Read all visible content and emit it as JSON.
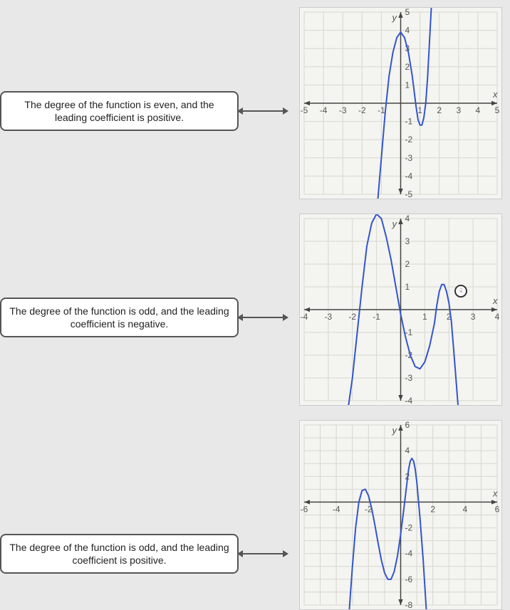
{
  "labels": {
    "row1": "The degree of the function is even, and the leading coefficient is positive.",
    "row2": "The degree of the function is odd, and the leading coefficient is negative.",
    "row3": "The degree of the function is odd, and the leading coefficient is positive."
  },
  "graphs": {
    "g1": {
      "type": "cartesian-plot",
      "xmin": -5,
      "xmax": 5,
      "ymin": -5,
      "ymax": 5,
      "xtick_step": 1,
      "ytick_step": 1,
      "x_axis_label": "x",
      "y_axis_label": "y",
      "background_color": "#f4f4f0",
      "grid_color": "#d8d8d0",
      "axis_color": "#444444",
      "curve_color": "#3355cc",
      "curve_width": 2,
      "label_fontsize": 12,
      "label_color": "#555555",
      "curve_points": [
        [
          -1.2,
          -5.5
        ],
        [
          -1.0,
          -3.0
        ],
        [
          -0.8,
          -0.5
        ],
        [
          -0.6,
          1.5
        ],
        [
          -0.4,
          2.8
        ],
        [
          -0.2,
          3.6
        ],
        [
          0.0,
          3.9
        ],
        [
          0.2,
          3.6
        ],
        [
          0.4,
          2.8
        ],
        [
          0.6,
          1.5
        ],
        [
          0.8,
          -0.2
        ],
        [
          0.9,
          -0.9
        ],
        [
          1.0,
          -1.2
        ],
        [
          1.1,
          -1.2
        ],
        [
          1.2,
          -0.8
        ],
        [
          1.3,
          0.0
        ],
        [
          1.4,
          1.5
        ],
        [
          1.5,
          3.5
        ],
        [
          1.6,
          5.5
        ]
      ]
    },
    "g2": {
      "type": "cartesian-plot",
      "xmin": -4,
      "xmax": 4,
      "ymin": -4,
      "ymax": 4,
      "xtick_step": 1,
      "ytick_step": 1,
      "x_axis_label": "x",
      "y_axis_label": "y",
      "background_color": "#f4f4f0",
      "grid_color": "#d8d8d0",
      "axis_color": "#444444",
      "curve_color": "#3355cc",
      "curve_width": 2,
      "label_fontsize": 12,
      "label_color": "#555555",
      "curve_points": [
        [
          -2.2,
          -4.5
        ],
        [
          -2.0,
          -3.0
        ],
        [
          -1.8,
          -1.0
        ],
        [
          -1.6,
          1.0
        ],
        [
          -1.4,
          2.8
        ],
        [
          -1.2,
          3.8
        ],
        [
          -1.0,
          4.2
        ],
        [
          -0.8,
          4.0
        ],
        [
          -0.6,
          3.2
        ],
        [
          -0.4,
          2.2
        ],
        [
          -0.2,
          1.0
        ],
        [
          0.0,
          -0.2
        ],
        [
          0.2,
          -1.2
        ],
        [
          0.4,
          -2.0
        ],
        [
          0.6,
          -2.5
        ],
        [
          0.8,
          -2.6
        ],
        [
          1.0,
          -2.3
        ],
        [
          1.2,
          -1.6
        ],
        [
          1.4,
          -0.6
        ],
        [
          1.5,
          0.2
        ],
        [
          1.6,
          0.8
        ],
        [
          1.7,
          1.1
        ],
        [
          1.8,
          1.1
        ],
        [
          1.9,
          0.8
        ],
        [
          2.0,
          0.3
        ],
        [
          2.1,
          -0.5
        ],
        [
          2.2,
          -1.8
        ],
        [
          2.4,
          -4.5
        ]
      ]
    },
    "g3": {
      "type": "cartesian-plot",
      "xmin": -6,
      "xmax": 6,
      "ymin": -8,
      "ymax": 6,
      "xtick_step": 2,
      "ytick_step": 2,
      "x_axis_label": "x",
      "y_axis_label": "y",
      "background_color": "#f4f4f0",
      "grid_color": "#d8d8d0",
      "axis_color": "#444444",
      "curve_color": "#3355cc",
      "curve_width": 2,
      "label_fontsize": 12,
      "label_color": "#555555",
      "curve_points": [
        [
          -3.2,
          -8.5
        ],
        [
          -3.0,
          -5.0
        ],
        [
          -2.8,
          -2.0
        ],
        [
          -2.6,
          0.0
        ],
        [
          -2.4,
          0.9
        ],
        [
          -2.2,
          1.0
        ],
        [
          -2.0,
          0.5
        ],
        [
          -1.8,
          -0.5
        ],
        [
          -1.6,
          -1.8
        ],
        [
          -1.4,
          -3.2
        ],
        [
          -1.2,
          -4.5
        ],
        [
          -1.0,
          -5.5
        ],
        [
          -0.8,
          -6.0
        ],
        [
          -0.6,
          -6.0
        ],
        [
          -0.4,
          -5.4
        ],
        [
          -0.2,
          -4.2
        ],
        [
          0.0,
          -2.5
        ],
        [
          0.2,
          -0.5
        ],
        [
          0.4,
          1.6
        ],
        [
          0.5,
          2.6
        ],
        [
          0.6,
          3.2
        ],
        [
          0.7,
          3.4
        ],
        [
          0.8,
          3.2
        ],
        [
          0.9,
          2.6
        ],
        [
          1.0,
          1.6
        ],
        [
          1.2,
          -1.2
        ],
        [
          1.4,
          -4.5
        ],
        [
          1.6,
          -8.5
        ]
      ],
      "note": "partial visible - bottom cuts off"
    }
  },
  "cursor": {
    "glyph": "☟"
  }
}
